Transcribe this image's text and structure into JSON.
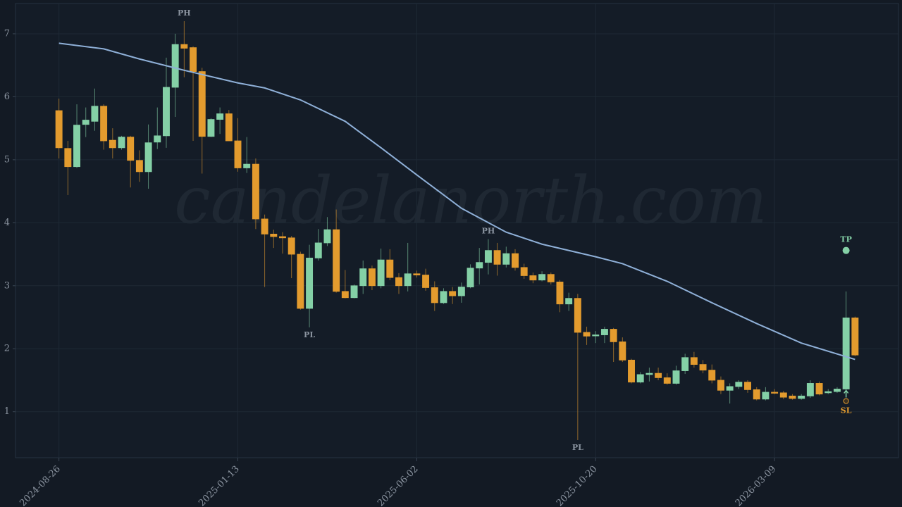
{
  "chart_data": {
    "type": "candlestick",
    "watermark": "candelanorth.com",
    "x": [
      "2024-08-26",
      "2024-09-02",
      "2024-09-09",
      "2024-09-16",
      "2024-09-23",
      "2024-09-30",
      "2024-10-07",
      "2024-10-14",
      "2024-10-21",
      "2024-10-28",
      "2024-11-04",
      "2024-11-11",
      "2024-11-18",
      "2024-11-25",
      "2024-12-02",
      "2024-12-09",
      "2024-12-16",
      "2024-12-23",
      "2024-12-30",
      "2025-01-06",
      "2025-01-13",
      "2025-01-20",
      "2025-01-27",
      "2025-02-03",
      "2025-02-10",
      "2025-02-17",
      "2025-02-24",
      "2025-03-03",
      "2025-03-10",
      "2025-03-17",
      "2025-03-24",
      "2025-03-31",
      "2025-04-07",
      "2025-04-14",
      "2025-04-21",
      "2025-04-28",
      "2025-05-05",
      "2025-05-12",
      "2025-05-19",
      "2025-05-26",
      "2025-06-02",
      "2025-06-09",
      "2025-06-16",
      "2025-06-23",
      "2025-06-30",
      "2025-07-07",
      "2025-07-14",
      "2025-07-21",
      "2025-07-28",
      "2025-08-04",
      "2025-08-11",
      "2025-08-18",
      "2025-08-25",
      "2025-09-01",
      "2025-09-08",
      "2025-09-15",
      "2025-09-22",
      "2025-09-29",
      "2025-10-06",
      "2025-10-13",
      "2025-10-20",
      "2025-10-27",
      "2025-11-03",
      "2025-11-10",
      "2025-11-17",
      "2025-11-24",
      "2025-12-01",
      "2025-12-08",
      "2025-12-15",
      "2025-12-22",
      "2025-12-29",
      "2026-01-05",
      "2026-01-12",
      "2026-01-19",
      "2026-01-26",
      "2026-02-02",
      "2026-02-09",
      "2026-02-16",
      "2026-02-23",
      "2026-03-02",
      "2026-03-09",
      "2026-03-16",
      "2026-03-23",
      "2026-03-30",
      "2026-04-06",
      "2026-04-13",
      "2026-04-20",
      "2026-04-27",
      "2026-05-04",
      "2026-05-11"
    ],
    "open": [
      5.78,
      5.18,
      4.89,
      5.56,
      5.61,
      5.85,
      5.31,
      5.19,
      5.36,
      4.99,
      4.81,
      5.28,
      5.38,
      6.15,
      6.83,
      6.78,
      6.4,
      5.37,
      5.64,
      5.73,
      5.3,
      4.87,
      4.93,
      4.06,
      3.82,
      3.78,
      3.76,
      3.5,
      2.64,
      3.44,
      3.68,
      3.89,
      2.91,
      2.81,
      3.0,
      3.27,
      3.0,
      3.41,
      3.13,
      3.0,
      3.19,
      3.17,
      2.97,
      2.73,
      2.91,
      2.84,
      2.98,
      3.28,
      3.37,
      3.56,
      3.34,
      3.51,
      3.29,
      3.16,
      3.09,
      3.18,
      3.06,
      2.71,
      2.8,
      2.26,
      2.21,
      2.22,
      2.31,
      2.11,
      1.82,
      1.47,
      1.59,
      1.61,
      1.54,
      1.45,
      1.65,
      1.86,
      1.75,
      1.66,
      1.5,
      1.34,
      1.4,
      1.47,
      1.35,
      1.2,
      1.31,
      1.3,
      1.25,
      1.21,
      1.25,
      1.45,
      1.3,
      1.32,
      1.36,
      2.49
    ],
    "high": [
      5.97,
      5.3,
      5.88,
      5.83,
      6.13,
      5.88,
      5.5,
      5.38,
      5.38,
      5.15,
      5.56,
      5.83,
      6.62,
      7.0,
      7.2,
      6.8,
      6.46,
      5.66,
      5.83,
      5.79,
      5.66,
      5.36,
      5.02,
      4.13,
      3.89,
      3.85,
      3.79,
      3.54,
      3.65,
      3.9,
      4.09,
      4.21,
      3.25,
      3.02,
      3.4,
      3.32,
      3.59,
      3.58,
      3.2,
      3.68,
      3.24,
      3.27,
      3.07,
      2.96,
      2.98,
      3.05,
      3.34,
      3.6,
      3.74,
      3.68,
      3.62,
      3.58,
      3.35,
      3.21,
      3.23,
      3.21,
      3.09,
      2.89,
      2.87,
      2.35,
      2.28,
      2.35,
      2.33,
      2.18,
      1.84,
      1.63,
      1.7,
      1.7,
      1.61,
      1.73,
      1.92,
      1.95,
      1.82,
      1.75,
      1.56,
      1.45,
      1.5,
      1.5,
      1.39,
      1.39,
      1.36,
      1.33,
      1.28,
      1.28,
      1.5,
      1.48,
      1.36,
      1.39,
      2.91,
      2.51
    ],
    "low": [
      5.02,
      4.44,
      4.87,
      5.36,
      5.46,
      5.16,
      5.02,
      5.16,
      4.56,
      4.65,
      4.54,
      5.17,
      5.19,
      5.68,
      6.31,
      5.3,
      4.78,
      5.36,
      5.41,
      5.3,
      4.81,
      4.79,
      3.9,
      2.98,
      3.6,
      3.51,
      3.12,
      2.62,
      2.34,
      3.4,
      3.63,
      2.89,
      2.8,
      2.8,
      2.87,
      2.93,
      2.96,
      3.09,
      2.87,
      2.91,
      3.13,
      2.92,
      2.6,
      2.71,
      2.71,
      2.73,
      2.96,
      3.02,
      3.18,
      3.16,
      3.29,
      3.24,
      3.11,
      3.04,
      3.07,
      3.02,
      2.58,
      2.6,
      0.55,
      2.06,
      2.09,
      2.09,
      1.79,
      1.79,
      1.45,
      1.45,
      1.48,
      1.5,
      1.43,
      1.43,
      1.6,
      1.7,
      1.61,
      1.45,
      1.28,
      1.13,
      1.36,
      1.3,
      1.18,
      1.18,
      1.28,
      1.2,
      1.19,
      1.19,
      1.22,
      1.26,
      1.28,
      1.3,
      1.34,
      1.88
    ],
    "close": [
      5.19,
      4.89,
      5.55,
      5.63,
      5.85,
      5.3,
      5.19,
      5.36,
      4.99,
      4.81,
      5.27,
      5.38,
      6.15,
      6.83,
      6.77,
      6.4,
      5.37,
      5.64,
      5.73,
      5.3,
      4.87,
      4.93,
      4.06,
      3.82,
      3.78,
      3.76,
      3.5,
      2.64,
      3.44,
      3.68,
      3.89,
      2.91,
      2.81,
      3.0,
      3.27,
      3.0,
      3.41,
      3.13,
      3.0,
      3.19,
      3.17,
      2.97,
      2.73,
      2.91,
      2.84,
      2.98,
      3.28,
      3.37,
      3.56,
      3.34,
      3.51,
      3.29,
      3.16,
      3.09,
      3.18,
      3.06,
      2.71,
      2.8,
      2.26,
      2.2,
      2.22,
      2.31,
      2.11,
      1.82,
      1.47,
      1.59,
      1.61,
      1.54,
      1.45,
      1.65,
      1.86,
      1.75,
      1.66,
      1.5,
      1.34,
      1.4,
      1.47,
      1.35,
      1.2,
      1.31,
      1.3,
      1.23,
      1.21,
      1.25,
      1.45,
      1.28,
      1.32,
      1.36,
      2.49,
      1.9
    ],
    "up_color": "#84d0a6",
    "down_color": "#e39b2e",
    "lines": [
      {
        "color": "#8fb0d8",
        "x": [
          "2024-08-26",
          "2024-09-30",
          "2024-10-28",
          "2024-12-02",
          "2025-01-13",
          "2025-02-03",
          "2025-03-03",
          "2025-04-07",
          "2025-05-05",
          "2025-06-02",
          "2025-07-07",
          "2025-08-11",
          "2025-09-08",
          "2025-10-20",
          "2025-11-10",
          "2025-12-15",
          "2026-01-19",
          "2026-02-23",
          "2026-03-30",
          "2026-05-11"
        ],
        "values": [
          6.85,
          6.76,
          6.6,
          6.42,
          6.22,
          6.14,
          5.95,
          5.61,
          5.19,
          4.76,
          4.23,
          3.85,
          3.66,
          3.46,
          3.35,
          3.07,
          2.73,
          2.4,
          2.09,
          1.83
        ]
      }
    ],
    "annotations": [
      {
        "label": "PH",
        "x": "2024-12-02",
        "y": 7.2,
        "position": "above"
      },
      {
        "label": "PL",
        "x": "2025-03-10",
        "y": 2.34,
        "position": "below"
      },
      {
        "label": "PH",
        "x": "2025-07-28",
        "y": 3.74,
        "position": "above"
      },
      {
        "label": "PL",
        "x": "2025-10-06",
        "y": 0.55,
        "position": "below"
      }
    ],
    "markers": [
      {
        "label": "TP",
        "x": "2026-05-04",
        "y": 3.56,
        "color": "#84d0a6",
        "position": "above"
      },
      {
        "label": "SL",
        "x": "2026-05-04",
        "y": 1.17,
        "color": "#e39b2e",
        "position": "below"
      }
    ],
    "xlim": [
      "2024-07-23",
      "2026-06-14"
    ],
    "xticks": [
      "2024-08-26",
      "2025-01-13",
      "2025-06-02",
      "2025-10-20",
      "2026-03-09"
    ],
    "ylim": [
      0.27,
      7.48
    ],
    "yticks": [
      1,
      2,
      3,
      4,
      5,
      6,
      7
    ],
    "grid": true
  }
}
